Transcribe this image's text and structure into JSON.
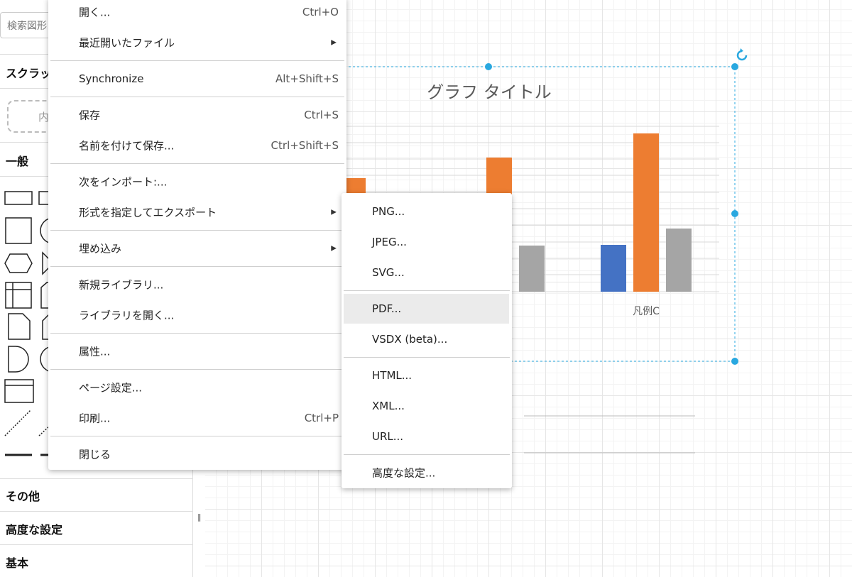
{
  "sidebar": {
    "search_placeholder": "検索図形",
    "sections": [
      "スクラッチ",
      "一般",
      "その他",
      "高度な設定",
      "基本"
    ],
    "scratch_hint": "内"
  },
  "canvas": {
    "chart_title": "グラフ タイトル",
    "category_label": "凡例C"
  },
  "menu": {
    "groups": [
      [
        {
          "label": "開く...",
          "shortcut": "Ctrl+O"
        },
        {
          "label": "最近開いたファイル",
          "has_submenu": true
        }
      ],
      [
        {
          "label": "Synchronize",
          "shortcut": "Alt+Shift+S"
        }
      ],
      [
        {
          "label": "保存",
          "shortcut": "Ctrl+S"
        },
        {
          "label": "名前を付けて保存...",
          "shortcut": "Ctrl+Shift+S"
        }
      ],
      [
        {
          "label": "次をインポート:..."
        },
        {
          "label": "形式を指定してエクスポート",
          "has_submenu": true
        }
      ],
      [
        {
          "label": "埋め込み",
          "has_submenu": true
        }
      ],
      [
        {
          "label": "新規ライブラリ..."
        },
        {
          "label": "ライブラリを開く..."
        }
      ],
      [
        {
          "label": "属性..."
        }
      ],
      [
        {
          "label": "ページ設定..."
        },
        {
          "label": "印刷...",
          "shortcut": "Ctrl+P"
        }
      ],
      [
        {
          "label": "閉じる"
        }
      ]
    ]
  },
  "submenu": {
    "groups": [
      [
        {
          "label": "PNG..."
        },
        {
          "label": "JPEG..."
        },
        {
          "label": "SVG..."
        }
      ],
      [
        {
          "label": "PDF...",
          "selected": true
        },
        {
          "label": "VSDX (beta)..."
        }
      ],
      [
        {
          "label": "HTML..."
        },
        {
          "label": "XML..."
        },
        {
          "label": "URL..."
        }
      ],
      [
        {
          "label": "高度な設定..."
        }
      ]
    ]
  }
}
